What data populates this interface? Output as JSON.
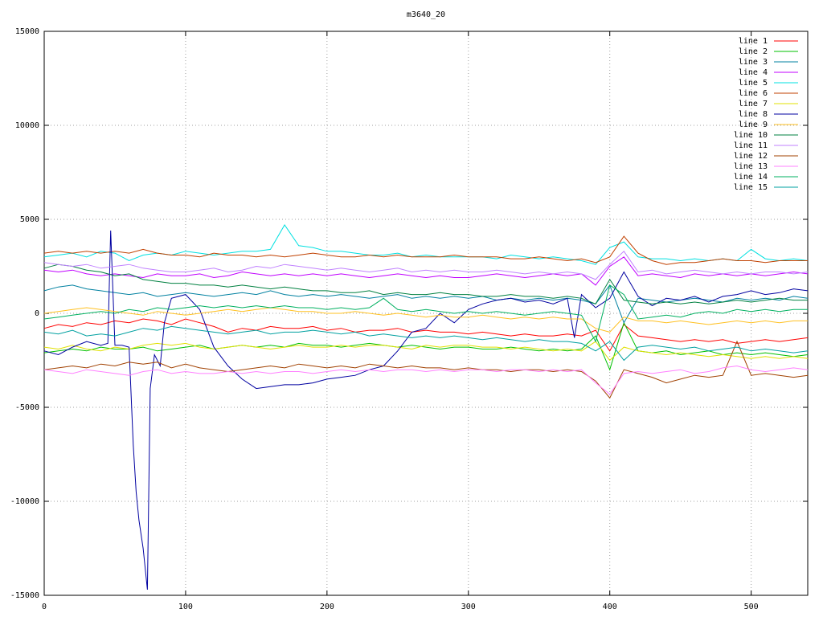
{
  "chart_data": {
    "type": "line",
    "title": "m3640_20",
    "xlim": [
      0,
      540
    ],
    "ylim": [
      -15000,
      15000
    ],
    "xticks": [
      0,
      100,
      200,
      300,
      400,
      500
    ],
    "yticks": [
      -15000,
      -10000,
      -5000,
      0,
      5000,
      10000,
      15000
    ],
    "grid": true,
    "legend": "top-right",
    "x": [
      0,
      10,
      20,
      30,
      40,
      50,
      60,
      70,
      80,
      90,
      100,
      110,
      120,
      130,
      140,
      150,
      160,
      170,
      180,
      190,
      200,
      210,
      220,
      230,
      240,
      250,
      260,
      270,
      280,
      290,
      300,
      310,
      320,
      330,
      340,
      350,
      360,
      370,
      380,
      390,
      400,
      410,
      420,
      430,
      440,
      450,
      460,
      470,
      480,
      490,
      500,
      510,
      520,
      530,
      540
    ],
    "series": [
      {
        "name": "line 1",
        "color": "#ff0000",
        "values": [
          -800,
          -600,
          -700,
          -500,
          -600,
          -400,
          -500,
          -300,
          -400,
          -600,
          -300,
          -500,
          -700,
          -1000,
          -800,
          -900,
          -700,
          -800,
          -800,
          -700,
          -900,
          -800,
          -1000,
          -900,
          -900,
          -800,
          -1000,
          -900,
          -1000,
          -1000,
          -1100,
          -1000,
          -1100,
          -1200,
          -1100,
          -1200,
          -1200,
          -1100,
          -1200,
          -900,
          -2000,
          -600,
          -1200,
          -1300,
          -1400,
          -1500,
          -1400,
          -1500,
          -1400,
          -1600,
          -1500,
          -1400,
          -1500,
          -1400,
          -1300
        ]
      },
      {
        "name": "line 2",
        "color": "#00c000",
        "values": [
          -2100,
          -2000,
          -1900,
          -2000,
          -1800,
          -1900,
          -1900,
          -1800,
          -2000,
          -1900,
          -1800,
          -1700,
          -1900,
          -1800,
          -1700,
          -1800,
          -1700,
          -1800,
          -1600,
          -1700,
          -1700,
          -1800,
          -1700,
          -1600,
          -1700,
          -1800,
          -1700,
          -1800,
          -1900,
          -1800,
          -1800,
          -1900,
          -1900,
          -1800,
          -1900,
          -2000,
          -1900,
          -2000,
          -1900,
          -1200,
          -3000,
          -500,
          -2000,
          -2100,
          -2000,
          -2200,
          -2100,
          -2000,
          -2200,
          -2100,
          -2200,
          -2100,
          -2200,
          -2300,
          -2200
        ]
      },
      {
        "name": "line 3",
        "color": "#0080a0",
        "values": [
          1200,
          1400,
          1500,
          1300,
          1200,
          1100,
          1000,
          1100,
          900,
          1000,
          1100,
          1000,
          900,
          1000,
          1100,
          1000,
          1200,
          1000,
          900,
          1000,
          900,
          1000,
          900,
          800,
          900,
          1000,
          800,
          900,
          800,
          900,
          800,
          900,
          700,
          800,
          700,
          800,
          700,
          800,
          700,
          500,
          1500,
          -500,
          800,
          700,
          600,
          700,
          800,
          700,
          600,
          800,
          700,
          800,
          700,
          900,
          800
        ]
      },
      {
        "name": "line 4",
        "color": "#c000ff",
        "values": [
          2300,
          2200,
          2300,
          2100,
          2000,
          2100,
          2000,
          1900,
          2100,
          2000,
          2000,
          2100,
          1900,
          2000,
          2200,
          2100,
          2000,
          2100,
          2000,
          2100,
          2000,
          2100,
          2000,
          1900,
          2000,
          2100,
          2000,
          1900,
          2000,
          1900,
          1900,
          2000,
          2100,
          2000,
          1900,
          2000,
          2100,
          2000,
          2100,
          1500,
          2500,
          3000,
          2000,
          2100,
          2000,
          1900,
          2100,
          2000,
          2100,
          2000,
          2100,
          2000,
          2100,
          2200,
          2100
        ]
      },
      {
        "name": "line 5",
        "color": "#00e0e0",
        "values": [
          3000,
          3100,
          3200,
          3000,
          3300,
          3200,
          2800,
          3100,
          3200,
          3100,
          3300,
          3200,
          3100,
          3200,
          3300,
          3300,
          3400,
          4700,
          3600,
          3500,
          3300,
          3300,
          3200,
          3100,
          3100,
          3200,
          3000,
          3100,
          3000,
          3000,
          3000,
          3000,
          2900,
          3100,
          3000,
          2900,
          3000,
          2900,
          2800,
          2600,
          3500,
          3800,
          3000,
          2900,
          2900,
          2800,
          2900,
          2800,
          2900,
          2800,
          3400,
          2900,
          2800,
          2900,
          2800
        ]
      },
      {
        "name": "line 6",
        "color": "#c04000",
        "values": [
          3200,
          3300,
          3200,
          3300,
          3200,
          3300,
          3200,
          3400,
          3200,
          3100,
          3100,
          3000,
          3200,
          3100,
          3100,
          3000,
          3100,
          3000,
          3100,
          3200,
          3100,
          3000,
          3000,
          3100,
          3000,
          3100,
          3000,
          3000,
          3000,
          3100,
          3000,
          3000,
          3000,
          2900,
          2900,
          3000,
          2900,
          2800,
          2900,
          2700,
          3000,
          4100,
          3200,
          2800,
          2600,
          2700,
          2700,
          2800,
          2900,
          2800,
          2800,
          2700,
          2800,
          2800,
          2800
        ]
      },
      {
        "name": "line 7",
        "color": "#e0e000",
        "values": [
          -1800,
          -1900,
          -1700,
          -1900,
          -2000,
          -1800,
          -1900,
          -1700,
          -1600,
          -1700,
          -1600,
          -1800,
          -1900,
          -1800,
          -1700,
          -1800,
          -1900,
          -1800,
          -1700,
          -1800,
          -1800,
          -1700,
          -1800,
          -1700,
          -1700,
          -1800,
          -1900,
          -1700,
          -1800,
          -1700,
          -1700,
          -1800,
          -1800,
          -1900,
          -1800,
          -1900,
          -2000,
          -1900,
          -2000,
          -1500,
          -2500,
          -1800,
          -2000,
          -2100,
          -2200,
          -2100,
          -2200,
          -2300,
          -2200,
          -2300,
          -2400,
          -2300,
          -2400,
          -2300,
          -2400
        ]
      },
      {
        "name": "line 8",
        "color": "#0000a0",
        "x": [
          0,
          10,
          20,
          30,
          40,
          45,
          47,
          50,
          55,
          60,
          63,
          65,
          67,
          70,
          73,
          75,
          78,
          82,
          85,
          90,
          100,
          110,
          120,
          130,
          140,
          150,
          160,
          170,
          180,
          190,
          200,
          210,
          220,
          230,
          240,
          250,
          260,
          270,
          280,
          290,
          300,
          310,
          320,
          330,
          340,
          350,
          360,
          370,
          375,
          380,
          390,
          400,
          405,
          410,
          420,
          430,
          440,
          450,
          460,
          470,
          480,
          490,
          500,
          510,
          520,
          530,
          540
        ],
        "values": [
          -2000,
          -2200,
          -1800,
          -1500,
          -1700,
          -1600,
          4400,
          -1700,
          -1700,
          -1800,
          -7000,
          -9500,
          -11000,
          -12500,
          -14700,
          -4000,
          -2200,
          -2800,
          -500,
          800,
          1000,
          200,
          -1800,
          -2800,
          -3500,
          -4000,
          -3900,
          -3800,
          -3800,
          -3700,
          -3500,
          -3400,
          -3300,
          -3000,
          -2800,
          -2000,
          -1000,
          -800,
          0,
          -500,
          200,
          500,
          700,
          800,
          600,
          700,
          500,
          800,
          -1300,
          1000,
          300,
          800,
          1500,
          2200,
          900,
          400,
          800,
          700,
          900,
          600,
          900,
          1000,
          1200,
          1000,
          1100,
          1300,
          1200
        ]
      },
      {
        "name": "line 9",
        "color": "#ffc020",
        "values": [
          0,
          100,
          200,
          300,
          200,
          100,
          0,
          -100,
          100,
          0,
          -100,
          0,
          100,
          200,
          100,
          200,
          300,
          200,
          100,
          100,
          0,
          0,
          100,
          0,
          -100,
          0,
          -100,
          -200,
          -100,
          -200,
          -200,
          -100,
          -200,
          -300,
          -200,
          -300,
          -200,
          -300,
          -300,
          -800,
          -1000,
          -200,
          -400,
          -400,
          -500,
          -400,
          -500,
          -600,
          -500,
          -400,
          -500,
          -400,
          -500,
          -400,
          -400
        ]
      },
      {
        "name": "line 10",
        "color": "#008040",
        "values": [
          2400,
          2600,
          2500,
          2300,
          2200,
          2000,
          2100,
          1800,
          1700,
          1600,
          1600,
          1500,
          1500,
          1400,
          1500,
          1400,
          1300,
          1400,
          1300,
          1200,
          1200,
          1100,
          1100,
          1200,
          1000,
          1100,
          1000,
          1000,
          1100,
          1000,
          1000,
          900,
          900,
          1000,
          900,
          900,
          800,
          900,
          800,
          500,
          1800,
          700,
          600,
          500,
          600,
          500,
          600,
          500,
          600,
          700,
          600,
          700,
          800,
          700,
          700
        ]
      },
      {
        "name": "line 11",
        "color": "#c080ff",
        "values": [
          2700,
          2600,
          2500,
          2600,
          2400,
          2500,
          2600,
          2400,
          2300,
          2200,
          2200,
          2300,
          2400,
          2200,
          2300,
          2500,
          2400,
          2600,
          2500,
          2400,
          2300,
          2400,
          2300,
          2200,
          2300,
          2400,
          2200,
          2300,
          2200,
          2300,
          2200,
          2200,
          2300,
          2200,
          2100,
          2200,
          2100,
          2200,
          2100,
          1800,
          2600,
          3300,
          2200,
          2300,
          2100,
          2200,
          2300,
          2200,
          2100,
          2200,
          2100,
          2200,
          2200,
          2100,
          2200
        ]
      },
      {
        "name": "line 12",
        "color": "#a04000",
        "values": [
          -3000,
          -2900,
          -2800,
          -2900,
          -2700,
          -2800,
          -2600,
          -2700,
          -2600,
          -2900,
          -2700,
          -2900,
          -3000,
          -3100,
          -3000,
          -2900,
          -2800,
          -2900,
          -2700,
          -2800,
          -2900,
          -2800,
          -2900,
          -2700,
          -2800,
          -2900,
          -2800,
          -2900,
          -2900,
          -3000,
          -2900,
          -3000,
          -3000,
          -3100,
          -3000,
          -3000,
          -3100,
          -3000,
          -3100,
          -3600,
          -4500,
          -3000,
          -3200,
          -3400,
          -3700,
          -3500,
          -3300,
          -3400,
          -3300,
          -1500,
          -3300,
          -3200,
          -3300,
          -3400,
          -3300
        ]
      },
      {
        "name": "line 13",
        "color": "#ff80ff",
        "values": [
          -3000,
          -3100,
          -3200,
          -3000,
          -3100,
          -3200,
          -3300,
          -3100,
          -3000,
          -3200,
          -3100,
          -3200,
          -3200,
          -3100,
          -3200,
          -3100,
          -3200,
          -3100,
          -3100,
          -3200,
          -3100,
          -3000,
          -3100,
          -3000,
          -3100,
          -3000,
          -3000,
          -3100,
          -3000,
          -3100,
          -3000,
          -3000,
          -3100,
          -3000,
          -3000,
          -3100,
          -3000,
          -3100,
          -3000,
          -3700,
          -4300,
          -3200,
          -3100,
          -3200,
          -3100,
          -3000,
          -3200,
          -3100,
          -2900,
          -2800,
          -3000,
          -3100,
          -3000,
          -2900,
          -3000
        ]
      },
      {
        "name": "line 14",
        "color": "#00b060",
        "values": [
          -300,
          -200,
          -100,
          0,
          100,
          0,
          200,
          100,
          300,
          200,
          300,
          400,
          300,
          400,
          300,
          400,
          300,
          400,
          300,
          300,
          200,
          300,
          200,
          300,
          800,
          200,
          100,
          200,
          100,
          0,
          100,
          0,
          100,
          0,
          -100,
          0,
          100,
          0,
          -100,
          -1500,
          1500,
          1000,
          -300,
          -200,
          -100,
          -200,
          0,
          100,
          0,
          200,
          100,
          200,
          100,
          200,
          200
        ]
      },
      {
        "name": "line 15",
        "color": "#00a0a0",
        "values": [
          -1000,
          -1100,
          -900,
          -1200,
          -1100,
          -1200,
          -1000,
          -800,
          -900,
          -700,
          -800,
          -900,
          -1000,
          -1100,
          -1000,
          -900,
          -1100,
          -1000,
          -1000,
          -900,
          -1000,
          -1100,
          -1000,
          -1200,
          -1100,
          -1200,
          -1300,
          -1200,
          -1300,
          -1200,
          -1300,
          -1400,
          -1300,
          -1400,
          -1500,
          -1400,
          -1500,
          -1500,
          -1600,
          -2000,
          -1500,
          -2500,
          -1800,
          -1700,
          -1800,
          -1900,
          -1800,
          -2000,
          -1900,
          -1800,
          -2000,
          -1900,
          -2000,
          -2100,
          -2000
        ]
      }
    ]
  }
}
